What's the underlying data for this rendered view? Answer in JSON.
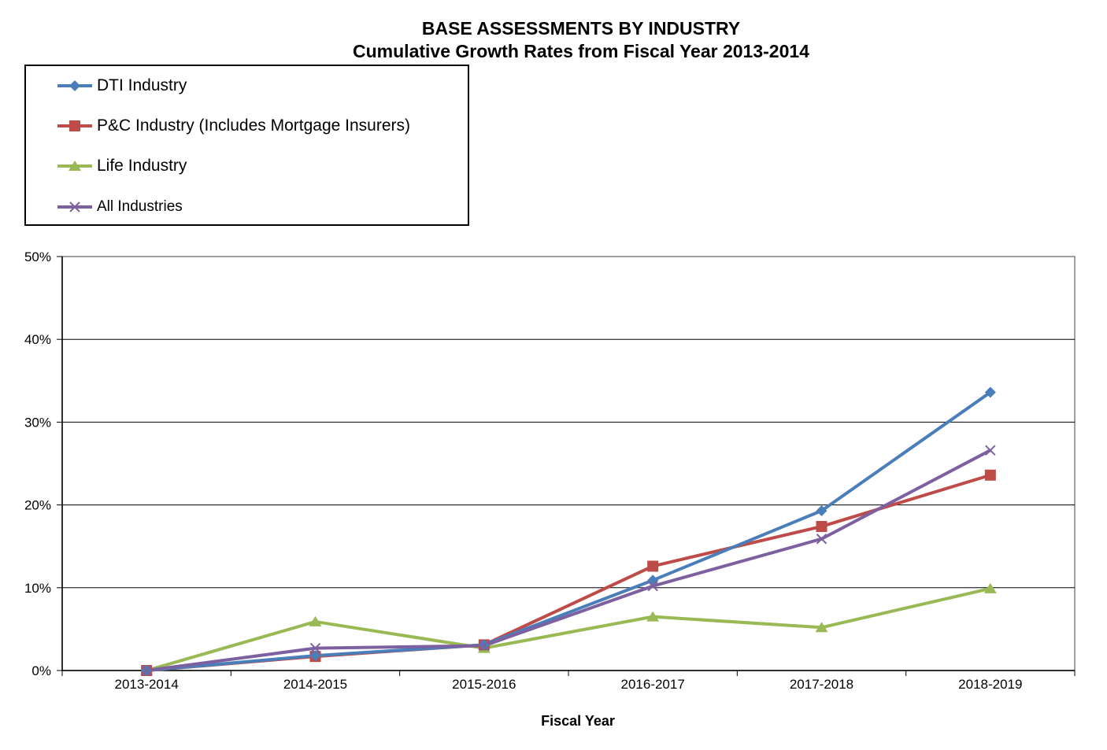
{
  "chart_data": {
    "type": "line",
    "title": "BASE ASSESSMENTS BY INDUSTRY",
    "subtitle": "Cumulative Growth Rates from Fiscal Year 2013-2014",
    "xlabel": "Fiscal Year",
    "ylabel": "",
    "categories": [
      "2013-2014",
      "2014-2015",
      "2015-2016",
      "2016-2017",
      "2017-2018",
      "2018-2019"
    ],
    "ylim": [
      0,
      50
    ],
    "yticks": [
      "0%",
      "10%",
      "20%",
      "30%",
      "40%",
      "50%"
    ],
    "grid": "horizontal",
    "legend_position": "top-left",
    "series": [
      {
        "name": "DTI Industry",
        "color": "#4a7ebb",
        "marker": "diamond",
        "values": [
          0,
          1.8,
          3.1,
          10.9,
          19.3,
          33.6
        ]
      },
      {
        "name": "P&C Industry (Includes Mortgage Insurers)",
        "color": "#be4b48",
        "marker": "square",
        "values": [
          0,
          1.7,
          3.1,
          12.6,
          17.4,
          23.6
        ]
      },
      {
        "name": "Life Industry",
        "color": "#98b954",
        "marker": "triangle",
        "values": [
          0,
          5.9,
          2.7,
          6.5,
          5.2,
          9.9
        ]
      },
      {
        "name": "All Industries",
        "color": "#7d60a0",
        "marker": "x",
        "values": [
          0,
          2.7,
          3.0,
          10.2,
          15.9,
          26.6
        ]
      }
    ]
  }
}
